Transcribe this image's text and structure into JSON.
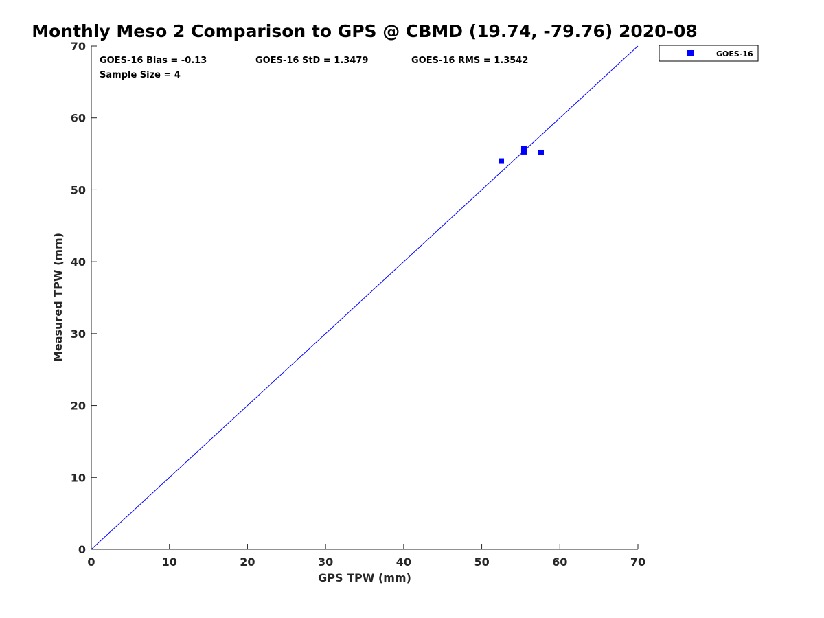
{
  "chart_data": {
    "type": "scatter",
    "title": "Monthly Meso 2 Comparison to GPS @ CBMD (19.74, -79.76) 2020-08",
    "xlabel": "GPS TPW (mm)",
    "ylabel": "Measured TPW (mm)",
    "xlim": [
      0,
      70
    ],
    "ylim": [
      0,
      70
    ],
    "xticks": [
      0,
      10,
      20,
      30,
      40,
      50,
      60,
      70
    ],
    "yticks": [
      0,
      10,
      20,
      30,
      40,
      50,
      60,
      70
    ],
    "grid": false,
    "legend_position": "outside-top-right",
    "reference_line": {
      "from": [
        0,
        0
      ],
      "to": [
        70,
        70
      ],
      "color": "#0000ff"
    },
    "series": [
      {
        "name": "GOES-16",
        "marker": "square",
        "color": "#0000ff",
        "x": [
          52.5,
          55.4,
          55.4,
          57.6
        ],
        "y": [
          54.0,
          55.3,
          55.7,
          55.2
        ]
      }
    ],
    "stats": {
      "bias": "GOES-16 Bias = -0.13",
      "std": "GOES-16 StD = 1.3479",
      "rms": "GOES-16 RMS = 1.3542",
      "sample": "Sample Size = 4"
    }
  }
}
